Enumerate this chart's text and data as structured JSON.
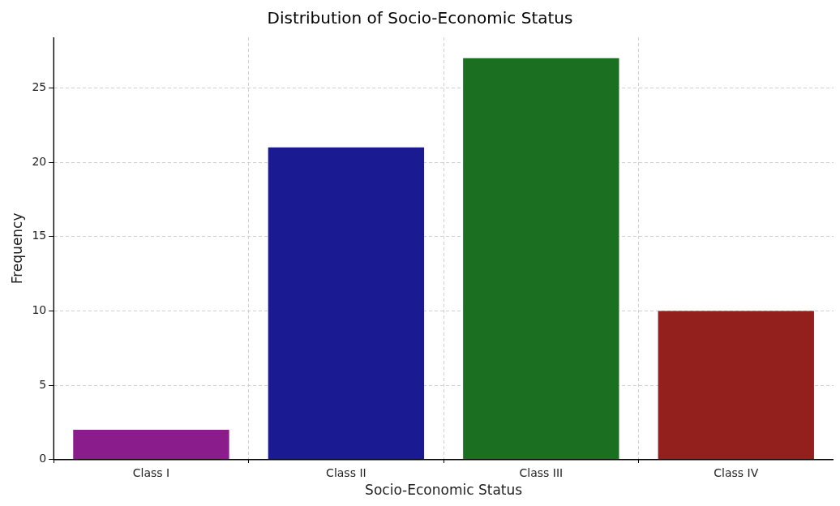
{
  "chart_data": {
    "type": "bar",
    "title": "Distribution of Socio-Economic Status",
    "xlabel": "Socio-Economic Status",
    "ylabel": "Frequency",
    "categories": [
      "Class I",
      "Class II",
      "Class III",
      "Class IV"
    ],
    "values": [
      2,
      21,
      27,
      10
    ],
    "colors": [
      "#8b1c8b",
      "#1a1a93",
      "#1a7020",
      "#93201d"
    ],
    "ylim": [
      0,
      28.4
    ],
    "yticks": [
      0,
      5,
      10,
      15,
      20,
      25
    ],
    "grid": true
  }
}
